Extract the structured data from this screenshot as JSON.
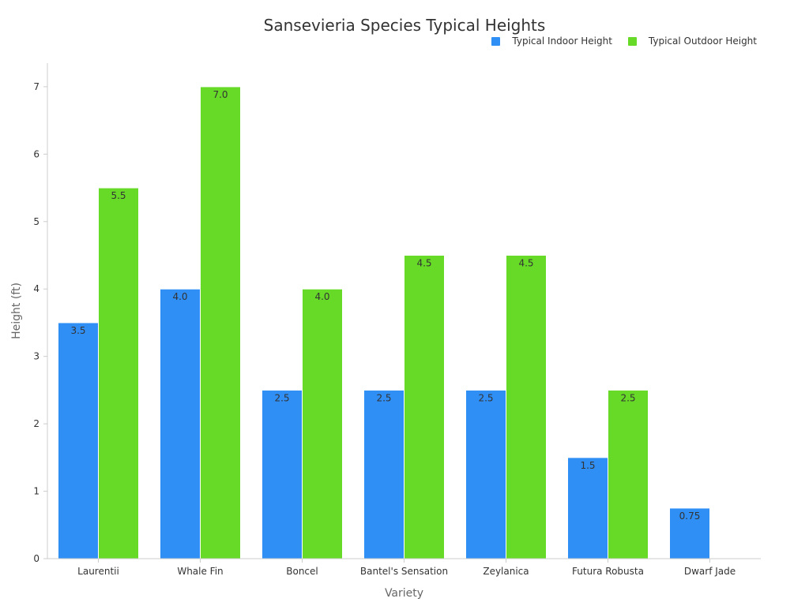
{
  "chart_data": {
    "type": "bar",
    "title": "Sansevieria Species Typical Heights",
    "xlabel": "Variety",
    "ylabel": "Height (ft)",
    "categories": [
      "Laurentii",
      "Whale Fin",
      "Boncel",
      "Bantel's Sensation",
      "Zeylanica",
      "Futura Robusta",
      "Dwarf Jade"
    ],
    "series": [
      {
        "name": "Typical Indoor Height",
        "color": "#2f8ff5",
        "values": [
          3.5,
          4.0,
          2.5,
          2.5,
          2.5,
          1.5,
          0.75
        ],
        "labels": [
          "3.5",
          "4.0",
          "2.5",
          "2.5",
          "2.5",
          "1.5",
          "0.75"
        ]
      },
      {
        "name": "Typical Outdoor Height",
        "color": "#66da27",
        "values": [
          5.5,
          7.0,
          4.0,
          4.5,
          4.5,
          2.5,
          null
        ],
        "labels": [
          "5.5",
          "7.0",
          "4.0",
          "4.5",
          "4.5",
          "2.5",
          null
        ]
      }
    ],
    "ylim": [
      0,
      7.35
    ],
    "yticks": [
      "0",
      "1",
      "2",
      "3",
      "4",
      "5",
      "6",
      "7"
    ],
    "grid": false,
    "legend_position": "top-right"
  }
}
